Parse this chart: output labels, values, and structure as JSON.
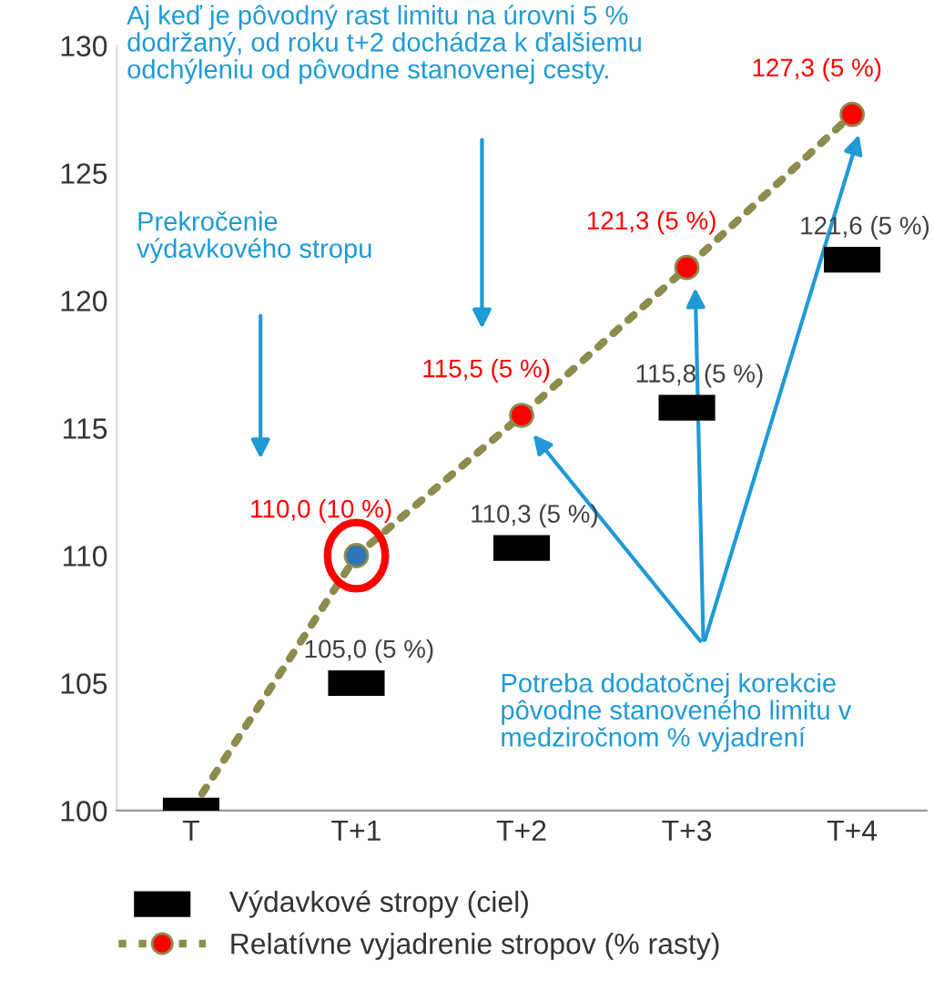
{
  "chart_data": {
    "type": "line",
    "categories": [
      "T",
      "T+1",
      "T+2",
      "T+3",
      "T+4"
    ],
    "ylim": [
      100,
      130
    ],
    "yticks": [
      100,
      105,
      110,
      115,
      120,
      125,
      130
    ],
    "grid": false,
    "legend": "bottom",
    "series": [
      {
        "name": "Výdavkové stropy (ciel)",
        "type": "scatter",
        "color": "#000000",
        "values": [
          100,
          105.0,
          110.3,
          115.8,
          121.6
        ],
        "value_labels": [
          null,
          "105,0 (5 %)",
          "110,3 (5 %)",
          "115,8 (5 %)",
          "121,6 (5 %)"
        ]
      },
      {
        "name": "Relatívne vyjadrenie stropov (% rasty)",
        "color": "#8c8c4e",
        "marker": "circle",
        "line_style": "dotted",
        "colors": [
          "#c8d89a",
          "#2e75b6",
          "#ff0000",
          "#ff0000",
          "#ff0000"
        ],
        "values": [
          100,
          110.0,
          115.5,
          121.3,
          127.3
        ],
        "value_labels": [
          null,
          "110,0 (10 %)",
          "115,5 (5 %)",
          "121,3 (5 %)",
          "127,3 (5 %)"
        ]
      }
    ],
    "annotations": [
      "Aj keď je pôvodný rast limitu na úrovni 5 %\ndodržaný, od roku t+2 dochádza k ďalšiemu\nodchýleniu od pôvodne stanovenej cesty.",
      "Prekročenie\nvýdavkového stropu",
      "Potreba dodatočnej korekcie pôvodne stanoveného limitu v medziročnom % vyjadrení"
    ]
  }
}
